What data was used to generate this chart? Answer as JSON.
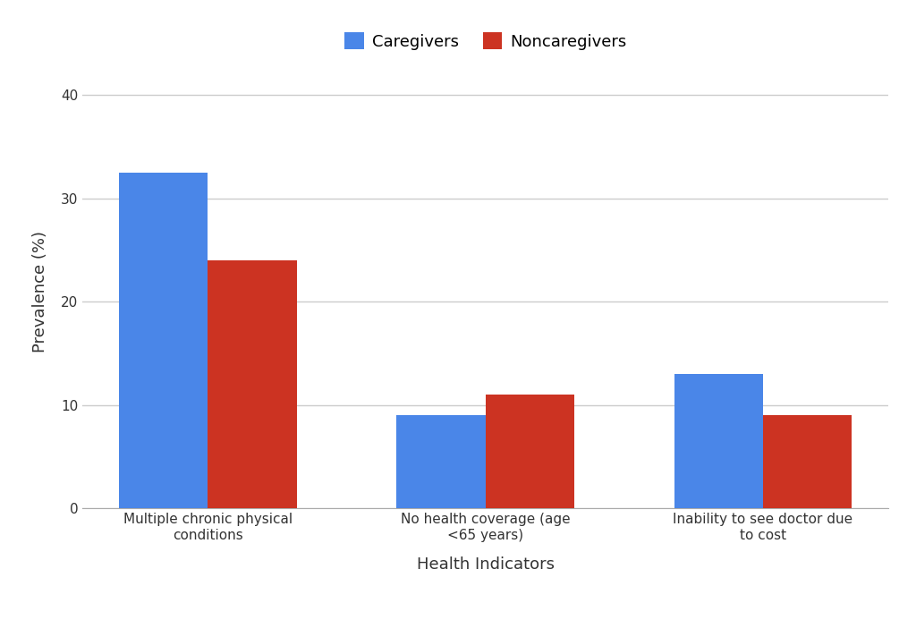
{
  "categories": [
    "Multiple chronic physical\nconditions",
    "No health coverage (age\n<65 years)",
    "Inability to see doctor due\nto cost"
  ],
  "caregivers": [
    32.5,
    9.0,
    13.0
  ],
  "noncaregivers": [
    24.0,
    11.0,
    9.0
  ],
  "caregiver_color": "#4A86E8",
  "noncaregiver_color": "#CC3322",
  "legend_labels": [
    "Caregivers",
    "Noncaregivers"
  ],
  "xlabel": "Health Indicators",
  "ylabel": "Prevalence (%)",
  "ylim": [
    0,
    42
  ],
  "yticks": [
    0,
    10,
    20,
    30,
    40
  ],
  "bar_width": 0.32,
  "background_color": "#ffffff",
  "grid_color": "#cccccc",
  "axis_label_fontsize": 13,
  "tick_fontsize": 11,
  "legend_fontsize": 13
}
